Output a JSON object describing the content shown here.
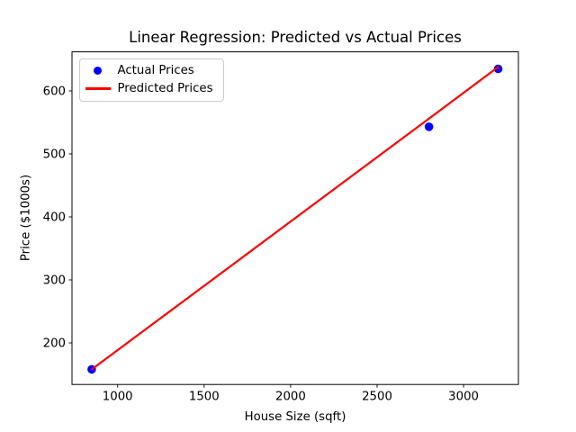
{
  "chart_data": {
    "type": "scatter",
    "title": "Linear Regression: Predicted vs Actual Prices",
    "xlabel": "House Size (sqft)",
    "ylabel": "Price ($1000s)",
    "x": [
      850,
      2800,
      3200
    ],
    "series": [
      {
        "name": "Actual Prices",
        "kind": "scatter",
        "color": "#0000ff",
        "values": [
          158,
          543,
          635
        ]
      },
      {
        "name": "Predicted Prices",
        "kind": "line",
        "color": "#ff0000",
        "values": [
          158,
          556,
          638
        ]
      }
    ],
    "xticks": [
      1000,
      1500,
      2000,
      2500,
      3000
    ],
    "yticks": [
      200,
      300,
      400,
      500,
      600
    ],
    "xlim": [
      736,
      3317
    ],
    "ylim": [
      134,
      662
    ],
    "legend_position": "upper left",
    "grid": false,
    "background": "#ffffff",
    "axis_color": "#000000"
  }
}
